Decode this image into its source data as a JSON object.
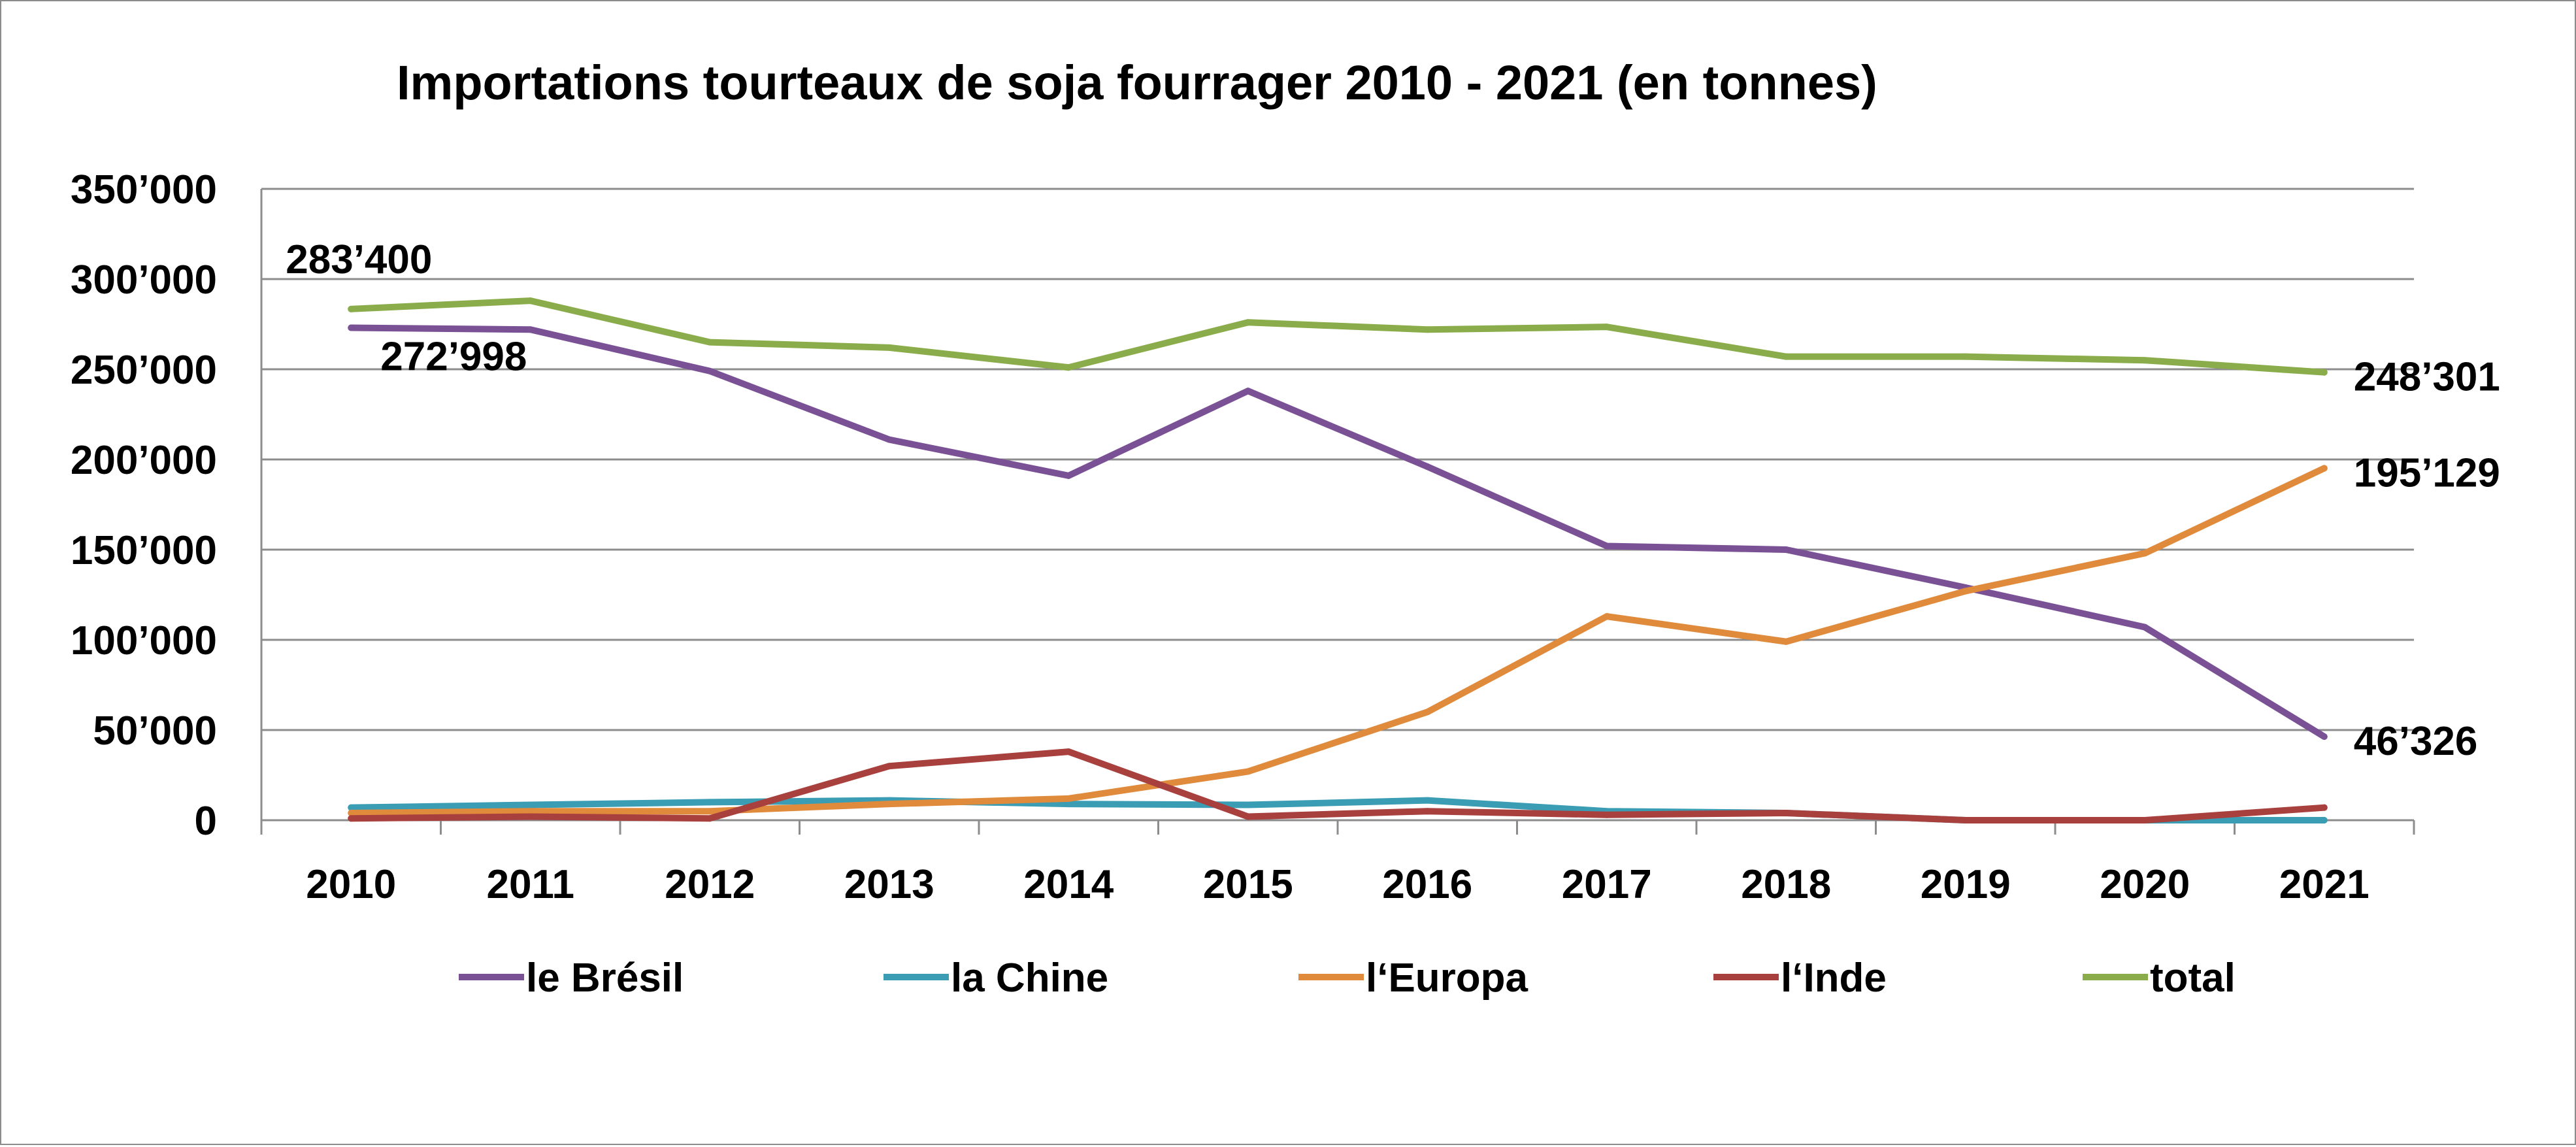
{
  "chart_data": {
    "type": "line",
    "title": "Importations tourteaux de soja fourrager 2010 - 2021 (en tonnes)",
    "xlabel": "",
    "ylabel": "",
    "x": [
      "2010",
      "2011",
      "2012",
      "2013",
      "2014",
      "2015",
      "2016",
      "2017",
      "2018",
      "2019",
      "2020",
      "2021"
    ],
    "ylim": [
      0,
      350000
    ],
    "yticks": [
      0,
      50000,
      100000,
      150000,
      200000,
      250000,
      300000,
      350000
    ],
    "ytick_labels": [
      "0",
      "50’000",
      "100’000",
      "150’000",
      "200’000",
      "250’000",
      "300’000",
      "350’000"
    ],
    "grid": true,
    "legend_position": "bottom",
    "series": [
      {
        "name": "le Brésil",
        "color": "#7a5195",
        "values": [
          272998,
          272000,
          249000,
          211000,
          191000,
          238000,
          196000,
          152000,
          150000,
          129000,
          107000,
          46326
        ]
      },
      {
        "name": "la Chine",
        "color": "#3a9db3",
        "values": [
          7000,
          8500,
          10000,
          11000,
          9000,
          8500,
          11000,
          5000,
          4000,
          0,
          0,
          0
        ]
      },
      {
        "name": "l‘Europa",
        "color": "#e08a3c",
        "values": [
          4000,
          5000,
          5000,
          9000,
          12000,
          27000,
          60000,
          113000,
          99000,
          127000,
          148000,
          195129
        ]
      },
      {
        "name": "l‘Inde",
        "color": "#a8403e",
        "values": [
          1000,
          2000,
          1000,
          30000,
          38000,
          2000,
          5000,
          3000,
          4000,
          0,
          0,
          7000
        ]
      },
      {
        "name": "total",
        "color": "#8aac4a",
        "values": [
          283400,
          288000,
          265000,
          262000,
          251000,
          276000,
          272000,
          273500,
          257000,
          257000,
          255000,
          248301
        ]
      }
    ],
    "annotations": [
      {
        "text": "283’400",
        "series": 4,
        "index": 0,
        "place": "above-left"
      },
      {
        "text": "272’998",
        "series": 0,
        "index": 0,
        "place": "below-right"
      },
      {
        "text": "248’301",
        "series": 4,
        "index": 11,
        "place": "right"
      },
      {
        "text": "195’129",
        "series": 2,
        "index": 11,
        "place": "right"
      },
      {
        "text": "46’326",
        "series": 0,
        "index": 11,
        "place": "right"
      }
    ]
  }
}
